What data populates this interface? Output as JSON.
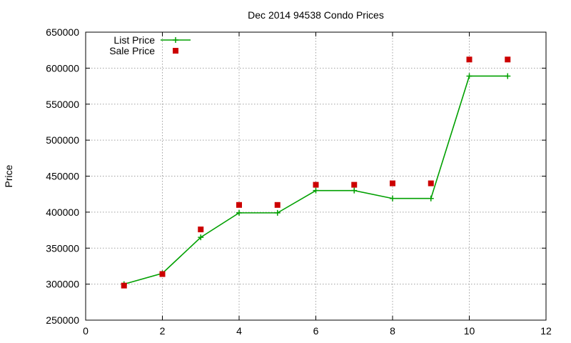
{
  "chart_data": {
    "type": "line",
    "title": "Dec 2014 94538 Condo Prices",
    "xlabel": "",
    "ylabel": "Price",
    "xlim": [
      0,
      12
    ],
    "ylim": [
      250000,
      650000
    ],
    "x_ticks": [
      0,
      2,
      4,
      6,
      8,
      10,
      12
    ],
    "y_ticks": [
      250000,
      300000,
      350000,
      400000,
      450000,
      500000,
      550000,
      600000,
      650000
    ],
    "grid": true,
    "legend_position": "top-left",
    "series": [
      {
        "name": "List Price",
        "style": "linespoints",
        "marker": "plus",
        "color": "#00a000",
        "x": [
          1,
          2,
          3,
          4,
          5,
          6,
          7,
          8,
          9,
          10,
          11
        ],
        "y": [
          300000,
          315000,
          365000,
          399000,
          399000,
          430000,
          430000,
          419000,
          419000,
          589000,
          589000
        ]
      },
      {
        "name": "Sale Price",
        "style": "points",
        "marker": "square",
        "color": "#cc0000",
        "x": [
          1,
          2,
          3,
          4,
          5,
          6,
          7,
          8,
          9,
          10,
          11
        ],
        "y": [
          298000,
          314000,
          376000,
          410000,
          410000,
          438000,
          438000,
          440000,
          440000,
          612000,
          612000
        ]
      }
    ]
  }
}
